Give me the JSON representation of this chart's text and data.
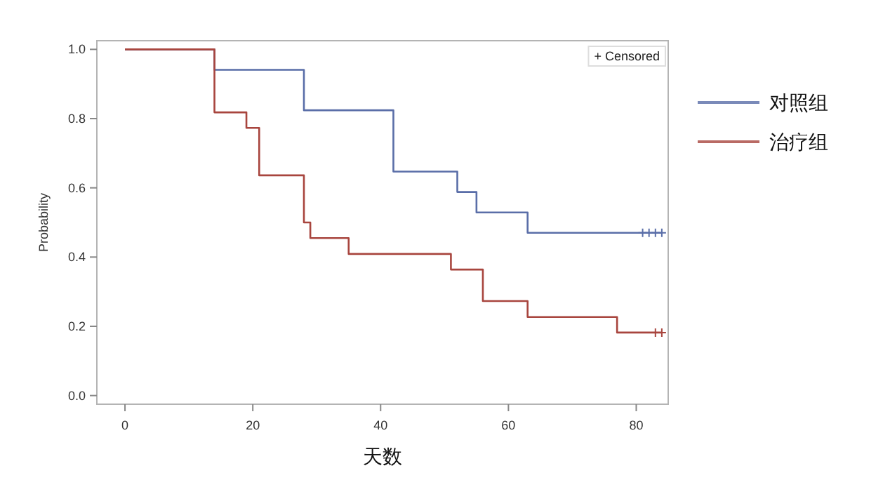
{
  "chart_data": {
    "type": "step",
    "xlabel": "天数",
    "ylabel": "Probability",
    "xlim": [
      -4.4,
      85
    ],
    "ylim": [
      -0.025,
      1.025
    ],
    "xticks": [
      0,
      20,
      40,
      60,
      80
    ],
    "yticks": [
      {
        "value": 0,
        "label": "0.0"
      },
      0.2,
      0.4,
      0.6,
      0.8,
      {
        "value": 1,
        "label": "1.0"
      }
    ],
    "legend": "right",
    "grid": false,
    "series": [
      {
        "name": "对照组",
        "color": "#5a6ea8",
        "x": [
          0,
          14,
          28,
          42,
          52,
          55,
          63,
          84
        ],
        "values": [
          1,
          0.941,
          0.824,
          0.647,
          0.588,
          0.529,
          0.47,
          0.47
        ]
      },
      {
        "name": "治疗组",
        "color": "#a8453e",
        "x": [
          0,
          14,
          19,
          21,
          28,
          29,
          35,
          51,
          56,
          63,
          77,
          84
        ],
        "values": [
          1,
          0.818,
          0.773,
          0.636,
          0.5,
          0.455,
          0.409,
          0.364,
          0.273,
          0.227,
          0.182,
          0.182
        ]
      },
      {
        "type": "scatter",
        "marker": "cross",
        "color": "#5a6ea8",
        "x": [
          81,
          82,
          83,
          84
        ],
        "values": [
          0.47,
          0.47,
          0.47,
          0.47
        ]
      },
      {
        "type": "scatter",
        "marker": "cross",
        "color": "#a8453e",
        "x": [
          83,
          84
        ],
        "values": [
          0.182,
          0.182
        ]
      }
    ],
    "annotations": [
      "+ Censored"
    ]
  }
}
